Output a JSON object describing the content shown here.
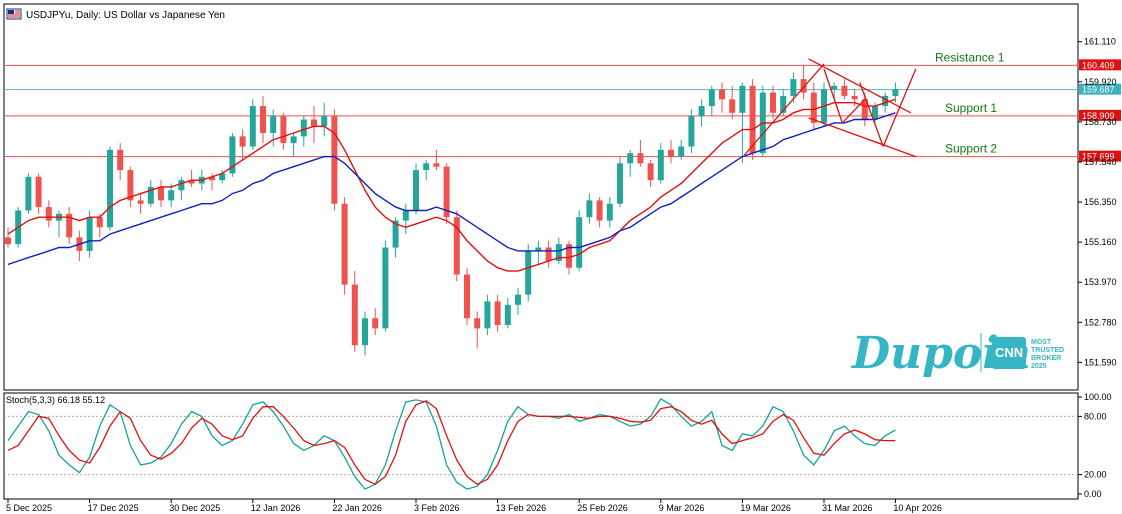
{
  "header": {
    "title": "USDJPYu, Daily:  US Dollar vs Japanese Yen",
    "icon": "chart-flag-icon"
  },
  "chart_data": {
    "type": "candlestick",
    "symbol": "USDJPYu",
    "timeframe": "Daily",
    "price_ticks": [
      "161.110",
      "159.920",
      "158.730",
      "157.540",
      "156.350",
      "155.160",
      "153.970",
      "152.780",
      "151.590"
    ],
    "price_tick_values": [
      161.11,
      159.92,
      158.73,
      157.54,
      156.35,
      155.16,
      153.97,
      152.78,
      151.59
    ],
    "price_range": [
      150.8,
      162.2
    ],
    "current_price": "159.687",
    "current_price_value": 159.687,
    "date_labels": [
      "5 Dec 2025",
      "17 Dec 2025",
      "30 Dec 2025",
      "12 Jan 2026",
      "22 Jan 2026",
      "3 Feb 2026",
      "13 Feb 2026",
      "25 Feb 2026",
      "9 Mar 2026",
      "19 Mar 2026",
      "31 Mar 2026",
      "10 Apr 2026"
    ],
    "date_label_index": [
      0,
      8,
      16,
      24,
      32,
      40,
      48,
      56,
      64,
      72,
      80,
      87
    ],
    "levels": [
      {
        "name": "Resistance 1",
        "label": "Resistance 1",
        "price": "160.409",
        "value": 160.409
      },
      {
        "name": "Support 1",
        "label": "Support 1",
        "price": "158.909",
        "value": 158.909
      },
      {
        "name": "Support 2",
        "label": "Support 2",
        "price": "157.699",
        "value": 157.699
      }
    ],
    "candles": [
      [
        155.3,
        155.6,
        155.0,
        155.1
      ],
      [
        155.1,
        156.2,
        155.0,
        156.1
      ],
      [
        156.1,
        157.2,
        156.0,
        157.1
      ],
      [
        157.1,
        157.2,
        156.0,
        156.2
      ],
      [
        156.2,
        156.4,
        155.6,
        155.8
      ],
      [
        155.8,
        156.1,
        155.3,
        156.0
      ],
      [
        156.0,
        156.2,
        155.1,
        155.3
      ],
      [
        155.3,
        155.5,
        154.6,
        154.9
      ],
      [
        154.9,
        156.1,
        154.7,
        155.9
      ],
      [
        155.9,
        156.0,
        155.3,
        155.6
      ],
      [
        155.6,
        158.0,
        155.5,
        157.9
      ],
      [
        157.9,
        158.1,
        157.0,
        157.3
      ],
      [
        157.3,
        157.4,
        156.2,
        156.4
      ],
      [
        156.4,
        156.6,
        156.0,
        156.3
      ],
      [
        156.3,
        157.0,
        156.2,
        156.8
      ],
      [
        156.8,
        157.0,
        156.2,
        156.4
      ],
      [
        156.4,
        156.9,
        156.2,
        156.7
      ],
      [
        156.7,
        157.1,
        156.4,
        157.0
      ],
      [
        157.0,
        157.3,
        156.8,
        156.9
      ],
      [
        156.9,
        157.3,
        156.7,
        157.1
      ],
      [
        157.1,
        157.2,
        156.7,
        157.0
      ],
      [
        157.0,
        157.3,
        156.9,
        157.2
      ],
      [
        157.2,
        158.4,
        157.1,
        158.3
      ],
      [
        158.3,
        158.5,
        157.6,
        158.0
      ],
      [
        158.0,
        159.4,
        157.9,
        159.2
      ],
      [
        159.2,
        159.5,
        158.1,
        158.4
      ],
      [
        158.4,
        159.1,
        158.0,
        158.9
      ],
      [
        158.9,
        159.0,
        157.9,
        158.1
      ],
      [
        158.1,
        158.4,
        157.7,
        158.3
      ],
      [
        158.3,
        158.9,
        158.0,
        158.8
      ],
      [
        158.8,
        159.2,
        158.1,
        158.6
      ],
      [
        158.6,
        159.3,
        158.3,
        158.9
      ],
      [
        158.9,
        159.1,
        156.1,
        156.3
      ],
      [
        156.3,
        156.5,
        153.6,
        153.9
      ],
      [
        153.9,
        154.3,
        151.9,
        152.1
      ],
      [
        152.1,
        153.1,
        151.8,
        152.9
      ],
      [
        152.9,
        153.2,
        152.4,
        152.6
      ],
      [
        152.6,
        155.2,
        152.5,
        155.0
      ],
      [
        155.0,
        155.9,
        154.7,
        155.8
      ],
      [
        155.8,
        156.3,
        155.4,
        156.1
      ],
      [
        156.1,
        157.5,
        156.0,
        157.3
      ],
      [
        157.3,
        157.6,
        157.0,
        157.5
      ],
      [
        157.5,
        157.9,
        157.3,
        157.4
      ],
      [
        157.4,
        157.5,
        155.7,
        155.9
      ],
      [
        155.9,
        156.1,
        154.0,
        154.2
      ],
      [
        154.2,
        154.4,
        152.7,
        152.9
      ],
      [
        152.9,
        153.1,
        152.0,
        152.6
      ],
      [
        152.6,
        153.6,
        152.4,
        153.4
      ],
      [
        153.4,
        153.6,
        152.5,
        152.7
      ],
      [
        152.7,
        153.5,
        152.6,
        153.3
      ],
      [
        153.3,
        153.8,
        153.0,
        153.6
      ],
      [
        153.6,
        155.1,
        153.4,
        154.9
      ],
      [
        154.9,
        155.2,
        154.5,
        155.0
      ],
      [
        155.0,
        155.2,
        154.4,
        154.6
      ],
      [
        154.6,
        155.3,
        154.5,
        155.1
      ],
      [
        155.1,
        155.2,
        154.2,
        154.4
      ],
      [
        154.4,
        156.1,
        154.3,
        155.9
      ],
      [
        155.9,
        156.6,
        155.7,
        156.4
      ],
      [
        156.4,
        156.5,
        155.6,
        155.8
      ],
      [
        155.8,
        156.5,
        155.6,
        156.3
      ],
      [
        156.3,
        157.7,
        156.2,
        157.5
      ],
      [
        157.5,
        157.9,
        157.1,
        157.8
      ],
      [
        157.8,
        158.2,
        157.4,
        157.5
      ],
      [
        157.5,
        157.6,
        156.8,
        157.0
      ],
      [
        157.0,
        158.1,
        156.9,
        157.9
      ],
      [
        157.9,
        158.2,
        157.5,
        157.7
      ],
      [
        157.7,
        158.2,
        157.6,
        158.0
      ],
      [
        158.0,
        159.1,
        157.8,
        158.9
      ],
      [
        158.9,
        159.4,
        158.6,
        159.2
      ],
      [
        159.2,
        159.8,
        158.9,
        159.7
      ],
      [
        159.7,
        159.9,
        159.0,
        159.4
      ],
      [
        159.4,
        159.8,
        158.8,
        159.0
      ],
      [
        159.0,
        159.9,
        157.5,
        159.8
      ],
      [
        159.8,
        160.0,
        157.6,
        157.8
      ],
      [
        157.8,
        159.8,
        157.7,
        159.6
      ],
      [
        159.6,
        159.8,
        158.8,
        159.0
      ],
      [
        159.0,
        159.7,
        158.9,
        159.5
      ],
      [
        159.5,
        160.2,
        159.3,
        160.0
      ],
      [
        160.0,
        160.4,
        159.4,
        159.6
      ],
      [
        159.6,
        159.9,
        158.5,
        158.7
      ],
      [
        158.7,
        159.9,
        158.6,
        159.7
      ],
      [
        159.7,
        159.9,
        159.4,
        159.8
      ],
      [
        159.8,
        160.0,
        159.4,
        159.5
      ],
      [
        159.5,
        159.7,
        159.2,
        159.4
      ],
      [
        159.4,
        159.6,
        158.6,
        158.8
      ],
      [
        158.8,
        159.3,
        158.7,
        159.2
      ],
      [
        159.2,
        159.6,
        159.0,
        159.5
      ],
      [
        159.5,
        159.9,
        159.3,
        159.7
      ]
    ],
    "ma_series": [
      {
        "color": "#e01010",
        "values": [
          155.4,
          155.6,
          155.8,
          155.9,
          155.9,
          155.9,
          155.9,
          155.8,
          155.9,
          155.9,
          156.2,
          156.4,
          156.5,
          156.6,
          156.7,
          156.8,
          156.8,
          156.9,
          157.0,
          157.0,
          157.1,
          157.2,
          157.4,
          157.6,
          157.8,
          158.0,
          158.2,
          158.3,
          158.4,
          158.5,
          158.6,
          158.6,
          158.4,
          157.9,
          157.3,
          156.7,
          156.2,
          155.9,
          155.7,
          155.6,
          155.7,
          155.8,
          155.9,
          155.8,
          155.6,
          155.2,
          154.9,
          154.6,
          154.4,
          154.3,
          154.3,
          154.4,
          154.5,
          154.6,
          154.7,
          154.7,
          154.8,
          155.0,
          155.1,
          155.2,
          155.5,
          155.8,
          156.0,
          156.2,
          156.5,
          156.7,
          156.9,
          157.2,
          157.5,
          157.8,
          158.1,
          158.3,
          158.5,
          158.5,
          158.7,
          158.7,
          158.8,
          159.0,
          159.1,
          159.1,
          159.2,
          159.3,
          159.3,
          159.3,
          159.2,
          159.2,
          159.3,
          159.4
        ]
      },
      {
        "color": "#1020c0",
        "values": [
          154.5,
          154.6,
          154.7,
          154.8,
          154.9,
          155.0,
          155.0,
          155.1,
          155.2,
          155.2,
          155.4,
          155.5,
          155.6,
          155.7,
          155.8,
          155.9,
          156.0,
          156.1,
          156.2,
          156.3,
          156.3,
          156.4,
          156.6,
          156.7,
          156.9,
          157.0,
          157.2,
          157.3,
          157.4,
          157.5,
          157.6,
          157.7,
          157.7,
          157.5,
          157.2,
          156.9,
          156.6,
          156.4,
          156.2,
          156.1,
          156.1,
          156.1,
          156.2,
          156.1,
          156.0,
          155.8,
          155.6,
          155.4,
          155.2,
          155.0,
          154.9,
          154.9,
          154.9,
          154.9,
          154.9,
          155.0,
          155.0,
          155.1,
          155.2,
          155.3,
          155.5,
          155.6,
          155.8,
          156.0,
          156.2,
          156.3,
          156.5,
          156.7,
          156.9,
          157.1,
          157.3,
          157.5,
          157.7,
          157.8,
          157.9,
          158.0,
          158.2,
          158.3,
          158.4,
          158.5,
          158.6,
          158.7,
          158.7,
          158.8,
          158.8,
          158.8,
          158.9,
          159.0
        ]
      }
    ],
    "trendlines": [
      {
        "color": "#e01010",
        "from": [
          72.2,
          157.75
        ],
        "to": [
          80,
          160.45
        ]
      },
      {
        "color": "#e01010",
        "from": [
          78.5,
          160.6
        ],
        "to": [
          88.5,
          159.0
        ]
      },
      {
        "color": "#e01010",
        "from": [
          78.5,
          158.85
        ],
        "to": [
          89,
          157.7
        ]
      },
      {
        "color": "#e01010",
        "from": [
          80,
          160.3
        ],
        "to": [
          81.8,
          158.7
        ]
      },
      {
        "color": "#e01010",
        "from": [
          81.8,
          158.7
        ],
        "to": [
          84,
          159.4
        ]
      },
      {
        "color": "#e01010",
        "from": [
          83.5,
          159.9
        ],
        "to": [
          85.8,
          158.0
        ]
      },
      {
        "color": "#e01010",
        "from": [
          85.8,
          158.0
        ],
        "to": [
          89,
          160.3
        ]
      }
    ],
    "indicator": {
      "label": "Stoch(5,3,3) 66.18 55.12",
      "ticks": [
        "100.00",
        "80.00",
        "20.00",
        "0.00"
      ],
      "tick_values": [
        100,
        80,
        20,
        0
      ],
      "main_color": "#18a0a0",
      "signal_color": "#e01010",
      "main": [
        55,
        70,
        85,
        82,
        65,
        40,
        30,
        22,
        38,
        70,
        92,
        85,
        50,
        30,
        32,
        38,
        52,
        72,
        85,
        80,
        60,
        50,
        55,
        72,
        92,
        95,
        85,
        70,
        52,
        45,
        50,
        60,
        55,
        38,
        18,
        5,
        10,
        30,
        65,
        95,
        97,
        95,
        70,
        30,
        12,
        5,
        8,
        20,
        45,
        75,
        90,
        82,
        80,
        80,
        78,
        82,
        75,
        78,
        82,
        80,
        75,
        70,
        72,
        80,
        98,
        92,
        80,
        70,
        75,
        85,
        50,
        45,
        62,
        60,
        70,
        90,
        85,
        65,
        40,
        30,
        45,
        65,
        70,
        60,
        52,
        50,
        60,
        66
      ],
      "signal": [
        45,
        50,
        65,
        80,
        78,
        60,
        45,
        35,
        32,
        48,
        70,
        85,
        78,
        55,
        40,
        36,
        42,
        52,
        68,
        78,
        72,
        60,
        56,
        60,
        78,
        90,
        90,
        80,
        68,
        55,
        50,
        52,
        55,
        48,
        30,
        15,
        10,
        18,
        40,
        75,
        92,
        96,
        88,
        60,
        35,
        18,
        10,
        15,
        30,
        55,
        75,
        82,
        80,
        80,
        80,
        80,
        79,
        78,
        80,
        80,
        78,
        75,
        74,
        76,
        88,
        90,
        85,
        76,
        72,
        76,
        62,
        52,
        55,
        58,
        62,
        75,
        82,
        76,
        58,
        42,
        40,
        52,
        62,
        66,
        62,
        56,
        55,
        55
      ]
    }
  },
  "brand": {
    "name": "Dupoin",
    "badge_logo": "CNN",
    "badge_line1": "MOST",
    "badge_line2": "TRUSTED",
    "badge_line3": "BROKER",
    "badge_line4": "2025"
  },
  "colors": {
    "bull": "#26a69a",
    "bear": "#ef5350",
    "resistance_line": "#e85050",
    "current_line": "#4fb8c8",
    "label_red": "#e01010",
    "label_teal": "#3ab0c0"
  }
}
